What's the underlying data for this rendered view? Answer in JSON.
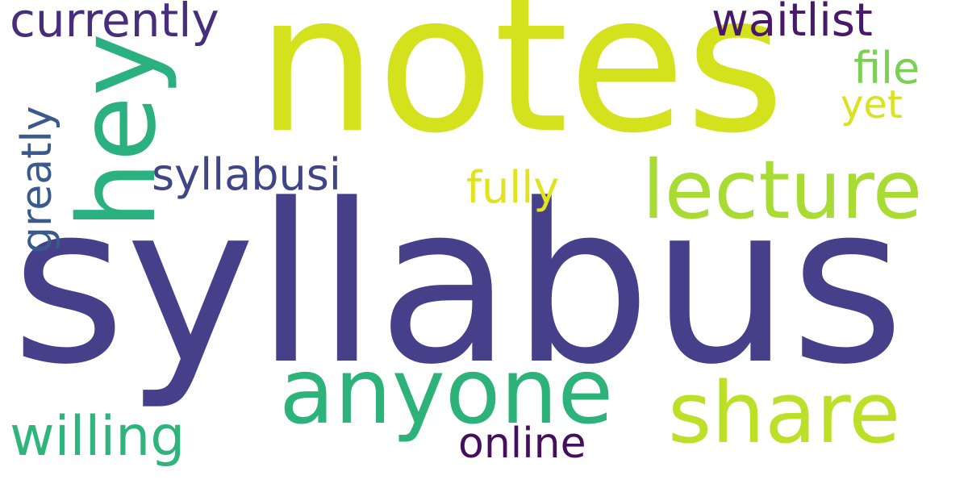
{
  "words": [
    {
      "id": "syllabus",
      "text": "syllabus",
      "color": "#46408a"
    },
    {
      "id": "notes",
      "text": "notes",
      "color": "#d3e21c"
    },
    {
      "id": "hey",
      "text": "hey",
      "color": "#2bb07f"
    },
    {
      "id": "anyone",
      "text": "anyone",
      "color": "#2db37a"
    },
    {
      "id": "share",
      "text": "share",
      "color": "#bcdf27"
    },
    {
      "id": "lecture",
      "text": "lecture",
      "color": "#a8db34"
    },
    {
      "id": "currently",
      "text": "currently",
      "color": "#472d7b"
    },
    {
      "id": "waitlist",
      "text": "waitlist",
      "color": "#48186a"
    },
    {
      "id": "syllabusi",
      "text": "syllabusi",
      "color": "#404588"
    },
    {
      "id": "fully",
      "text": "fully",
      "color": "#e0e31e"
    },
    {
      "id": "willing",
      "text": "willing",
      "color": "#2fb47c"
    },
    {
      "id": "online",
      "text": "online",
      "color": "#440f5c"
    },
    {
      "id": "greatly",
      "text": "greatly",
      "color": "#3b5a8c"
    },
    {
      "id": "file",
      "text": "file",
      "color": "#7ad151"
    },
    {
      "id": "yet",
      "text": "yet",
      "color": "#d9e21f"
    }
  ]
}
